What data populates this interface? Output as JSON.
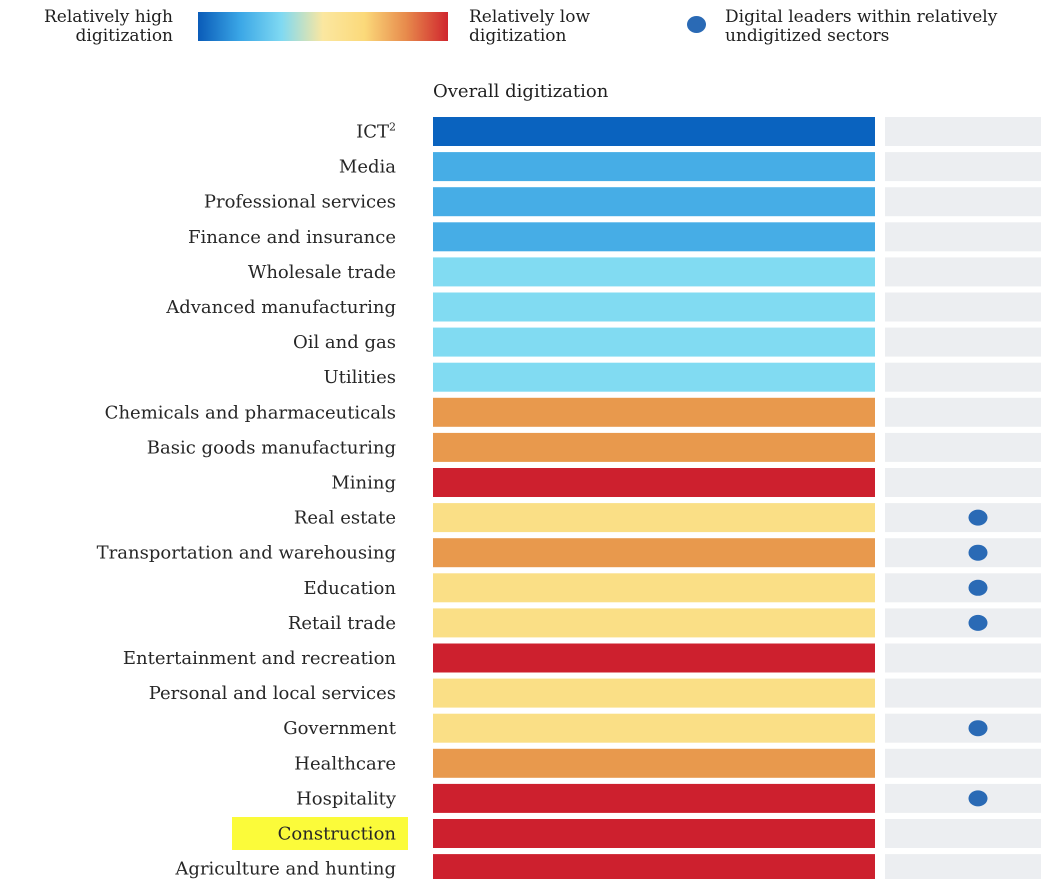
{
  "legend": {
    "high_label": "Relatively high\ndigitization",
    "low_label": "Relatively low\ndigitization",
    "leaders_label": "Digital leaders within relatively\nundigitized sectors",
    "leaders_dot_color": "#2a6ab5",
    "gradient_colors": [
      "#0a5bb8",
      "#3aa6e6",
      "#7fd9f2",
      "#fbe7a0",
      "#fbd97a",
      "#e78a4c",
      "#d0262e"
    ]
  },
  "column_header": "Overall digitization",
  "chart_data": {
    "type": "table",
    "columns": [
      "Overall digitization"
    ],
    "level_colors": {
      "1": "#0a63bf",
      "2": "#46ade6",
      "3": "#81dbf2",
      "4": "#fadf86",
      "5": "#e8994d",
      "6": "#cd202e"
    },
    "highlight_color": "#fbfb3a",
    "side_column_color": "#eceef1",
    "rows": [
      {
        "label": "ICT",
        "sup": "2",
        "level": 1,
        "digital_leaders": false,
        "highlighted": false
      },
      {
        "label": "Media",
        "level": 2,
        "digital_leaders": false,
        "highlighted": false
      },
      {
        "label": "Professional services",
        "level": 2,
        "digital_leaders": false,
        "highlighted": false
      },
      {
        "label": "Finance and insurance",
        "level": 2,
        "digital_leaders": false,
        "highlighted": false
      },
      {
        "label": "Wholesale trade",
        "level": 3,
        "digital_leaders": false,
        "highlighted": false
      },
      {
        "label": "Advanced manufacturing",
        "level": 3,
        "digital_leaders": false,
        "highlighted": false
      },
      {
        "label": "Oil and gas",
        "level": 3,
        "digital_leaders": false,
        "highlighted": false
      },
      {
        "label": "Utilities",
        "level": 3,
        "digital_leaders": false,
        "highlighted": false
      },
      {
        "label": "Chemicals and pharmaceuticals",
        "level": 5,
        "digital_leaders": false,
        "highlighted": false
      },
      {
        "label": "Basic goods manufacturing",
        "level": 5,
        "digital_leaders": false,
        "highlighted": false
      },
      {
        "label": "Mining",
        "level": 6,
        "digital_leaders": false,
        "highlighted": false
      },
      {
        "label": "Real estate",
        "level": 4,
        "digital_leaders": true,
        "highlighted": false
      },
      {
        "label": "Transportation and warehousing",
        "level": 5,
        "digital_leaders": true,
        "highlighted": false
      },
      {
        "label": "Education",
        "level": 4,
        "digital_leaders": true,
        "highlighted": false
      },
      {
        "label": "Retail trade",
        "level": 4,
        "digital_leaders": true,
        "highlighted": false
      },
      {
        "label": "Entertainment and recreation",
        "level": 6,
        "digital_leaders": false,
        "highlighted": false
      },
      {
        "label": "Personal and local services",
        "level": 4,
        "digital_leaders": false,
        "highlighted": false
      },
      {
        "label": "Government",
        "level": 4,
        "digital_leaders": true,
        "highlighted": false
      },
      {
        "label": "Healthcare",
        "level": 5,
        "digital_leaders": false,
        "highlighted": false
      },
      {
        "label": "Hospitality",
        "level": 6,
        "digital_leaders": true,
        "highlighted": false
      },
      {
        "label": "Construction",
        "level": 6,
        "digital_leaders": false,
        "highlighted": true
      },
      {
        "label": "Agriculture and hunting",
        "level": 6,
        "digital_leaders": false,
        "highlighted": false
      }
    ]
  }
}
